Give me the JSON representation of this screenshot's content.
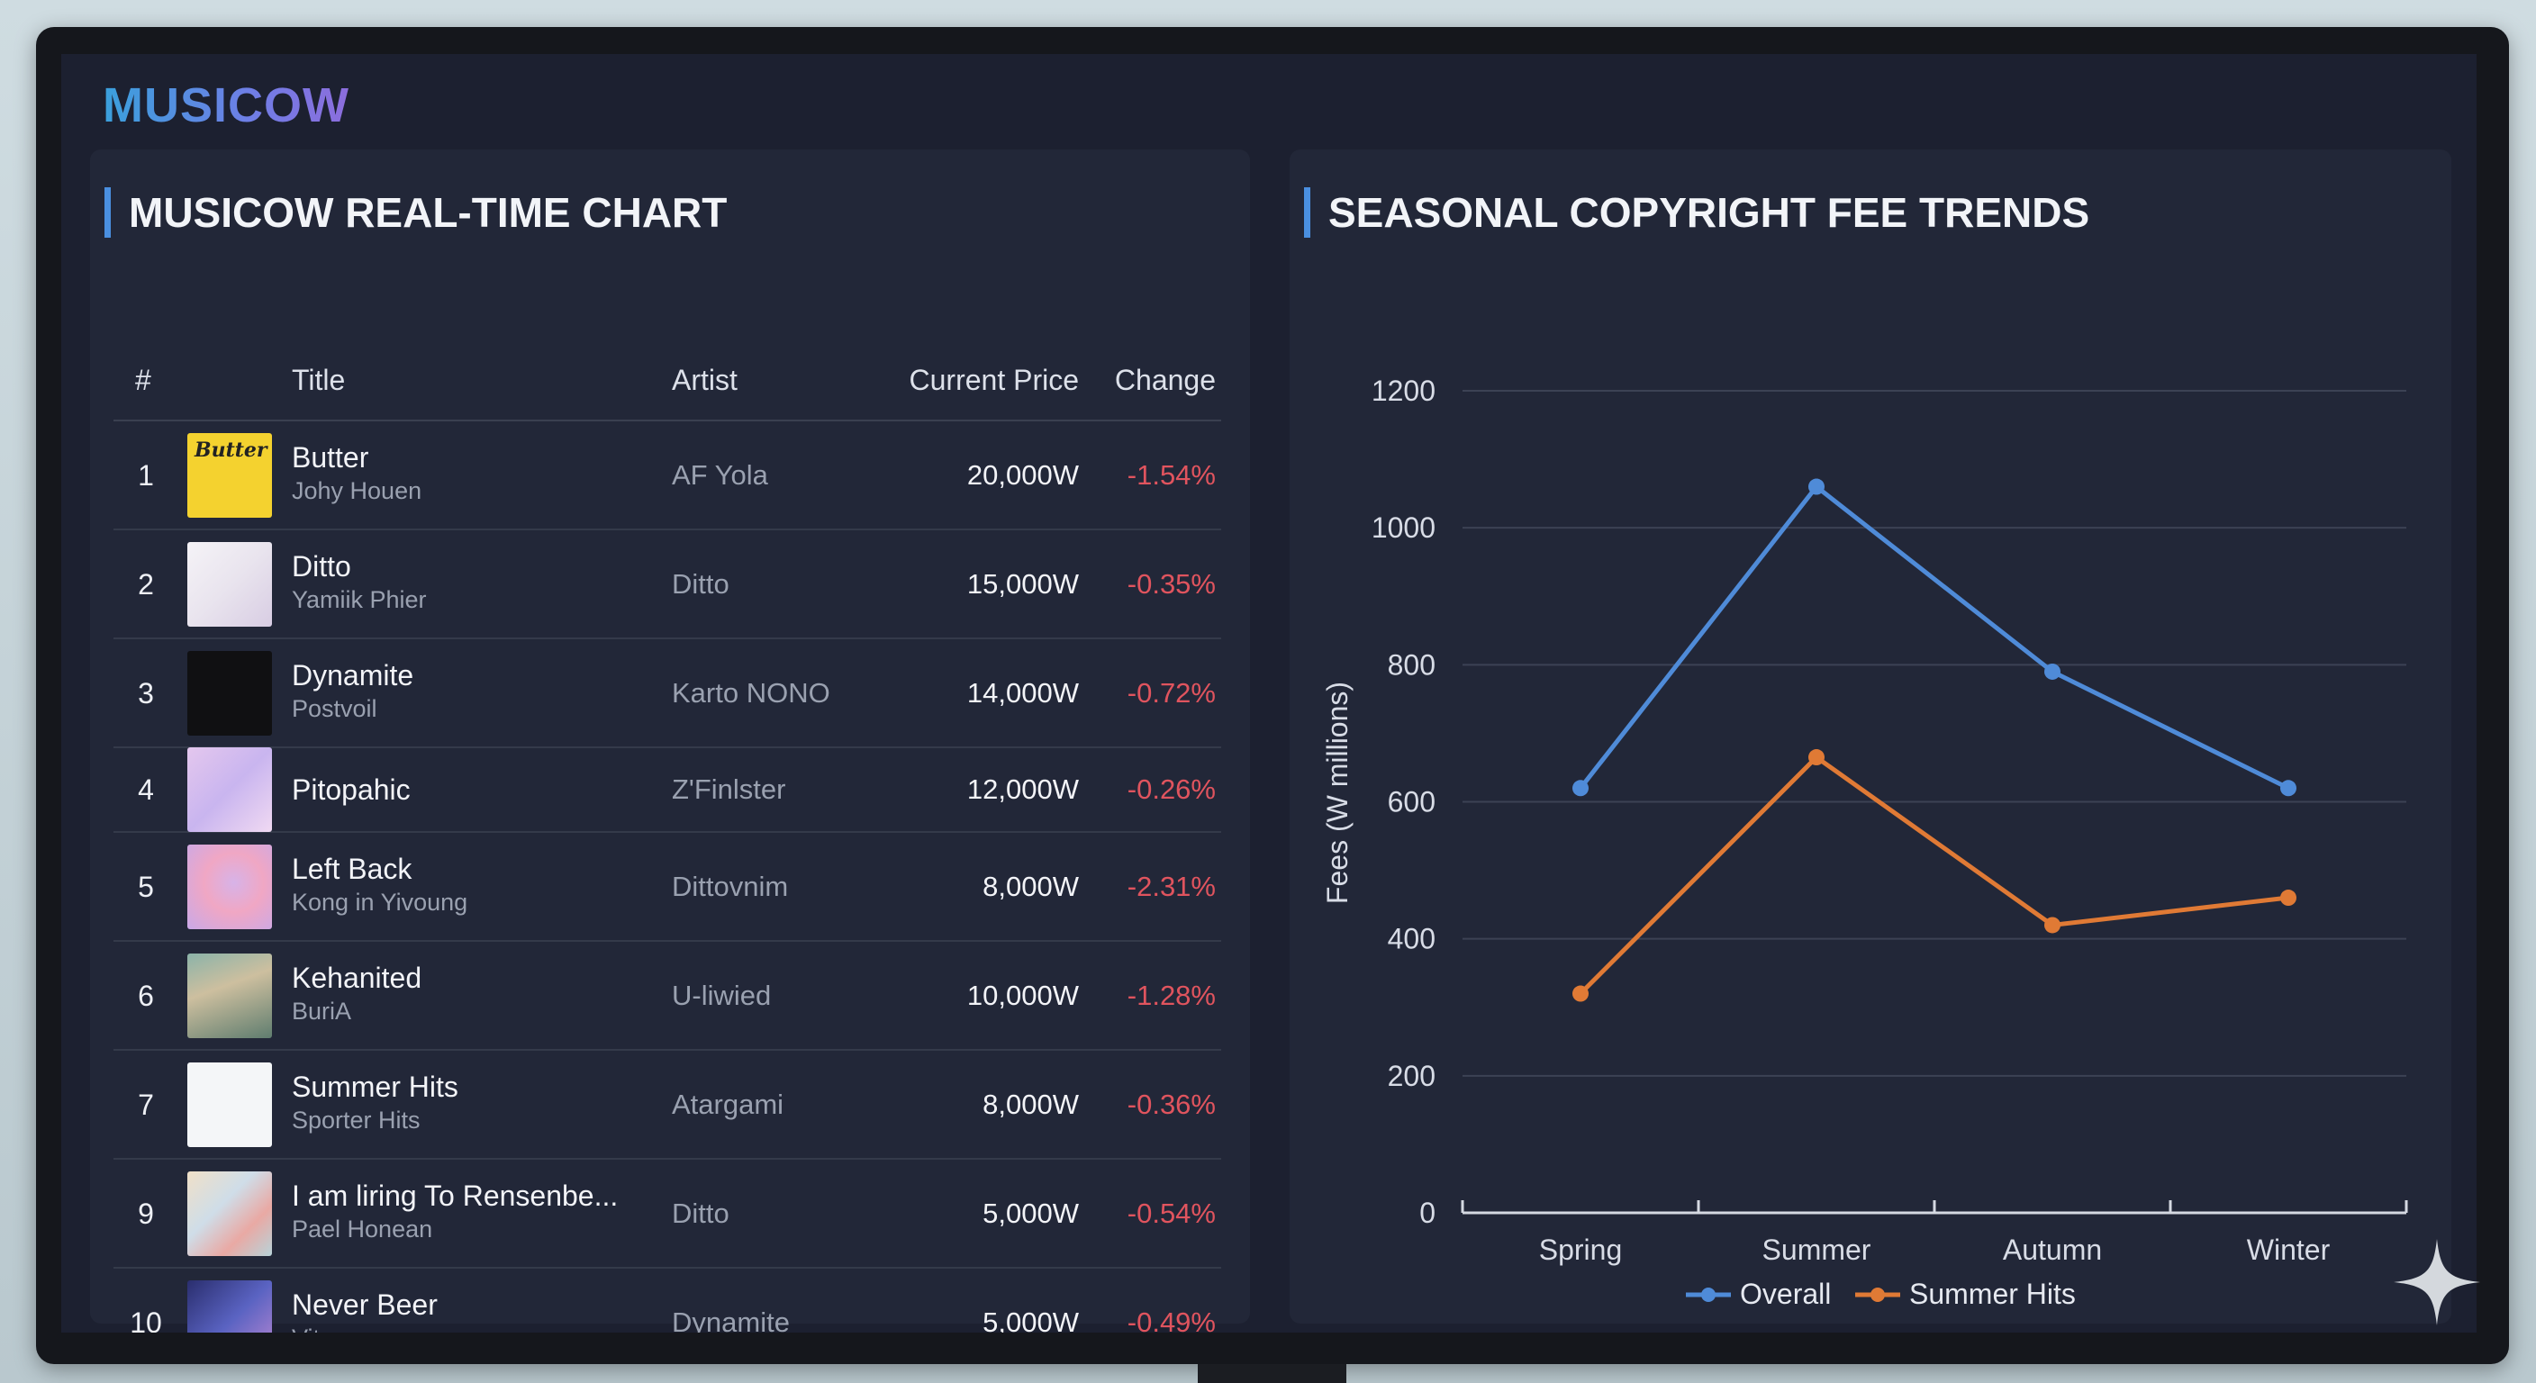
{
  "app": {
    "brand": "MUSICOW"
  },
  "colors": {
    "accent": "#4a8fe0",
    "negative": "#e0545e",
    "overall_line": "#4f8bd8",
    "summer_line": "#e07a35"
  },
  "table": {
    "title": "MUSICOW REAL-TIME CHART",
    "headers": {
      "rank": "#",
      "title": "Title",
      "artist": "Artist",
      "price": "Current Price",
      "change": "Change"
    },
    "rows": [
      {
        "rank": "1",
        "title": "Butter",
        "subtitle": "Johy Houen",
        "artist": "AF Yola",
        "price": "20,000W",
        "change": "-1.54%",
        "thumb_text": "Butter"
      },
      {
        "rank": "2",
        "title": "Ditto",
        "subtitle": "Yamiik Phier",
        "artist": "Ditto",
        "price": "15,000W",
        "change": "-0.35%"
      },
      {
        "rank": "3",
        "title": "Dynamite",
        "subtitle": "Postvoil",
        "artist": "Karto NONO",
        "price": "14,000W",
        "change": "-0.72%"
      },
      {
        "rank": "4",
        "title": "Pitopahic",
        "subtitle": "",
        "artist": "Z'Finlster",
        "price": "12,000W",
        "change": "-0.26%"
      },
      {
        "rank": "5",
        "title": "Left Back",
        "subtitle": "Kong in Yivoung",
        "artist": "Dittovnim",
        "price": "8,000W",
        "change": "-2.31%"
      },
      {
        "rank": "6",
        "title": "Kehanited",
        "subtitle": "BuriA",
        "artist": "U-liwied",
        "price": "10,000W",
        "change": "-1.28%"
      },
      {
        "rank": "7",
        "title": "Summer Hits",
        "subtitle": "Sporter Hits",
        "artist": "Atargami",
        "price": "8,000W",
        "change": "-0.36%"
      },
      {
        "rank": "9",
        "title": "I am liring To Rensenbe...",
        "subtitle": "Pael Honean",
        "artist": "Ditto",
        "price": "5,000W",
        "change": "-0.54%"
      },
      {
        "rank": "10",
        "title": "Never Beer",
        "subtitle": "Vitano",
        "artist": "Dynamite",
        "price": "5,000W",
        "change": "-0.49%"
      }
    ]
  },
  "chart_data": {
    "type": "line",
    "title": "SEASONAL COPYRIGHT FEE TRENDS",
    "xlabel": "",
    "ylabel": "Fees (W millions)",
    "categories": [
      "Spring",
      "Summer",
      "Autumn",
      "Winter"
    ],
    "ylim": [
      0,
      1200
    ],
    "yticks": [
      0,
      200,
      400,
      600,
      800,
      1000,
      1200
    ],
    "grid": true,
    "legend_position": "bottom",
    "series": [
      {
        "name": "Overall",
        "values": [
          620,
          1060,
          790,
          620
        ],
        "color": "#4f8bd8"
      },
      {
        "name": "Summer Hits",
        "values": [
          320,
          665,
          420,
          460
        ],
        "color": "#e07a35"
      }
    ]
  }
}
